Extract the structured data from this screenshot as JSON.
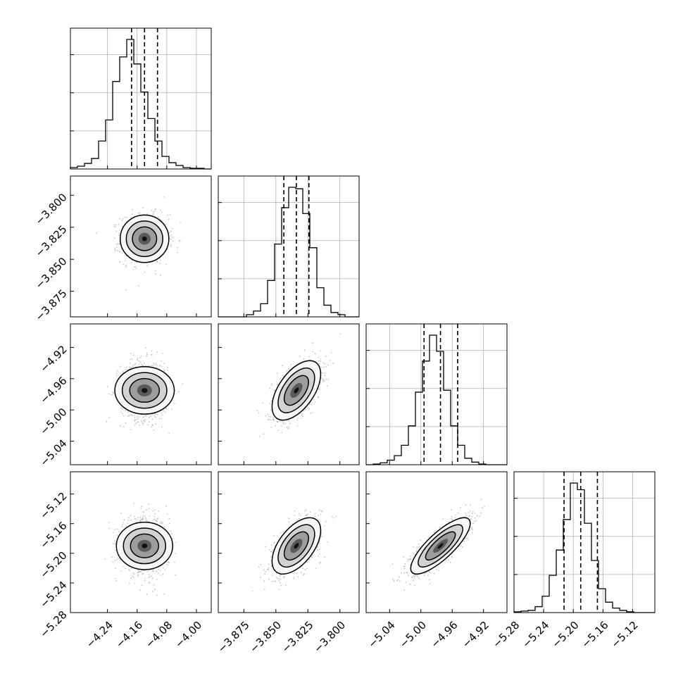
{
  "chart_data": {
    "type": "corner",
    "title": "",
    "params": [
      {
        "range": [
          -4.34,
          -3.96
        ],
        "hist_ticks": [
          -4.24,
          -4.16,
          -4.08,
          -4.0
        ],
        "ticks": [
          -4.24,
          -4.16,
          -4.08,
          -4.0
        ],
        "tick_labels": [
          "−4.24",
          "−4.16",
          "−4.08",
          "−4.00"
        ],
        "mean": -4.14,
        "sd": 0.032,
        "quantiles": [
          -4.175,
          -4.14,
          -4.105
        ]
      },
      {
        "range": [
          -3.895,
          -3.785
        ],
        "ticks": [
          -3.875,
          -3.85,
          -3.825,
          -3.8
        ],
        "tick_labels": [
          "−3.875",
          "−3.850",
          "−3.825",
          "−3.800"
        ],
        "mean": -3.834,
        "sd": 0.0095,
        "quantiles": [
          -3.8438,
          -3.834,
          -3.8242
        ]
      },
      {
        "range": [
          -5.07,
          -4.89
        ],
        "ticks": [
          -5.04,
          -5.0,
          -4.96,
          -4.92
        ],
        "tick_labels": [
          "−5.04",
          "−5.00",
          "−4.96",
          "−4.92"
        ],
        "mean": -4.975,
        "sd": 0.019,
        "quantiles": [
          -4.996,
          -4.975,
          -4.953
        ]
      },
      {
        "range": [
          -5.28,
          -5.09
        ],
        "ticks": [
          -5.28,
          -5.24,
          -5.2,
          -5.16,
          -5.12
        ],
        "tick_labels": [
          "−5.28",
          "−5.24",
          "−5.20",
          "−5.16",
          "−5.12"
        ],
        "mean": -5.19,
        "sd": 0.019,
        "quantiles": [
          -5.2125,
          -5.19,
          -5.1675
        ]
      }
    ],
    "histograms": [
      {
        "bins": 20,
        "counts": [
          2,
          4,
          8,
          15,
          40,
          70,
          125,
          160,
          185,
          150,
          110,
          72,
          40,
          18,
          9,
          5,
          2,
          1,
          1,
          0
        ]
      },
      {
        "bins": 20,
        "counts": [
          0,
          0,
          0,
          0,
          3,
          8,
          18,
          50,
          100,
          150,
          178,
          176,
          142,
          95,
          40,
          16,
          6,
          3,
          0,
          0
        ]
      },
      {
        "bins": 20,
        "counts": [
          0,
          1,
          3,
          7,
          14,
          30,
          60,
          112,
          160,
          200,
          175,
          115,
          60,
          30,
          10,
          4,
          1,
          0,
          0,
          0
        ]
      },
      {
        "bins": 20,
        "counts": [
          1,
          2,
          3,
          8,
          22,
          50,
          84,
          125,
          174,
          165,
          120,
          70,
          32,
          14,
          6,
          3,
          1,
          0,
          0,
          0
        ]
      }
    ],
    "correlations": {
      "1-0": 0.0,
      "2-0": 0.0,
      "2-1": 0.55,
      "3-0": 0.0,
      "3-1": 0.55,
      "3-2": 0.8
    },
    "grid": true,
    "quantile_lines": "dashed"
  }
}
